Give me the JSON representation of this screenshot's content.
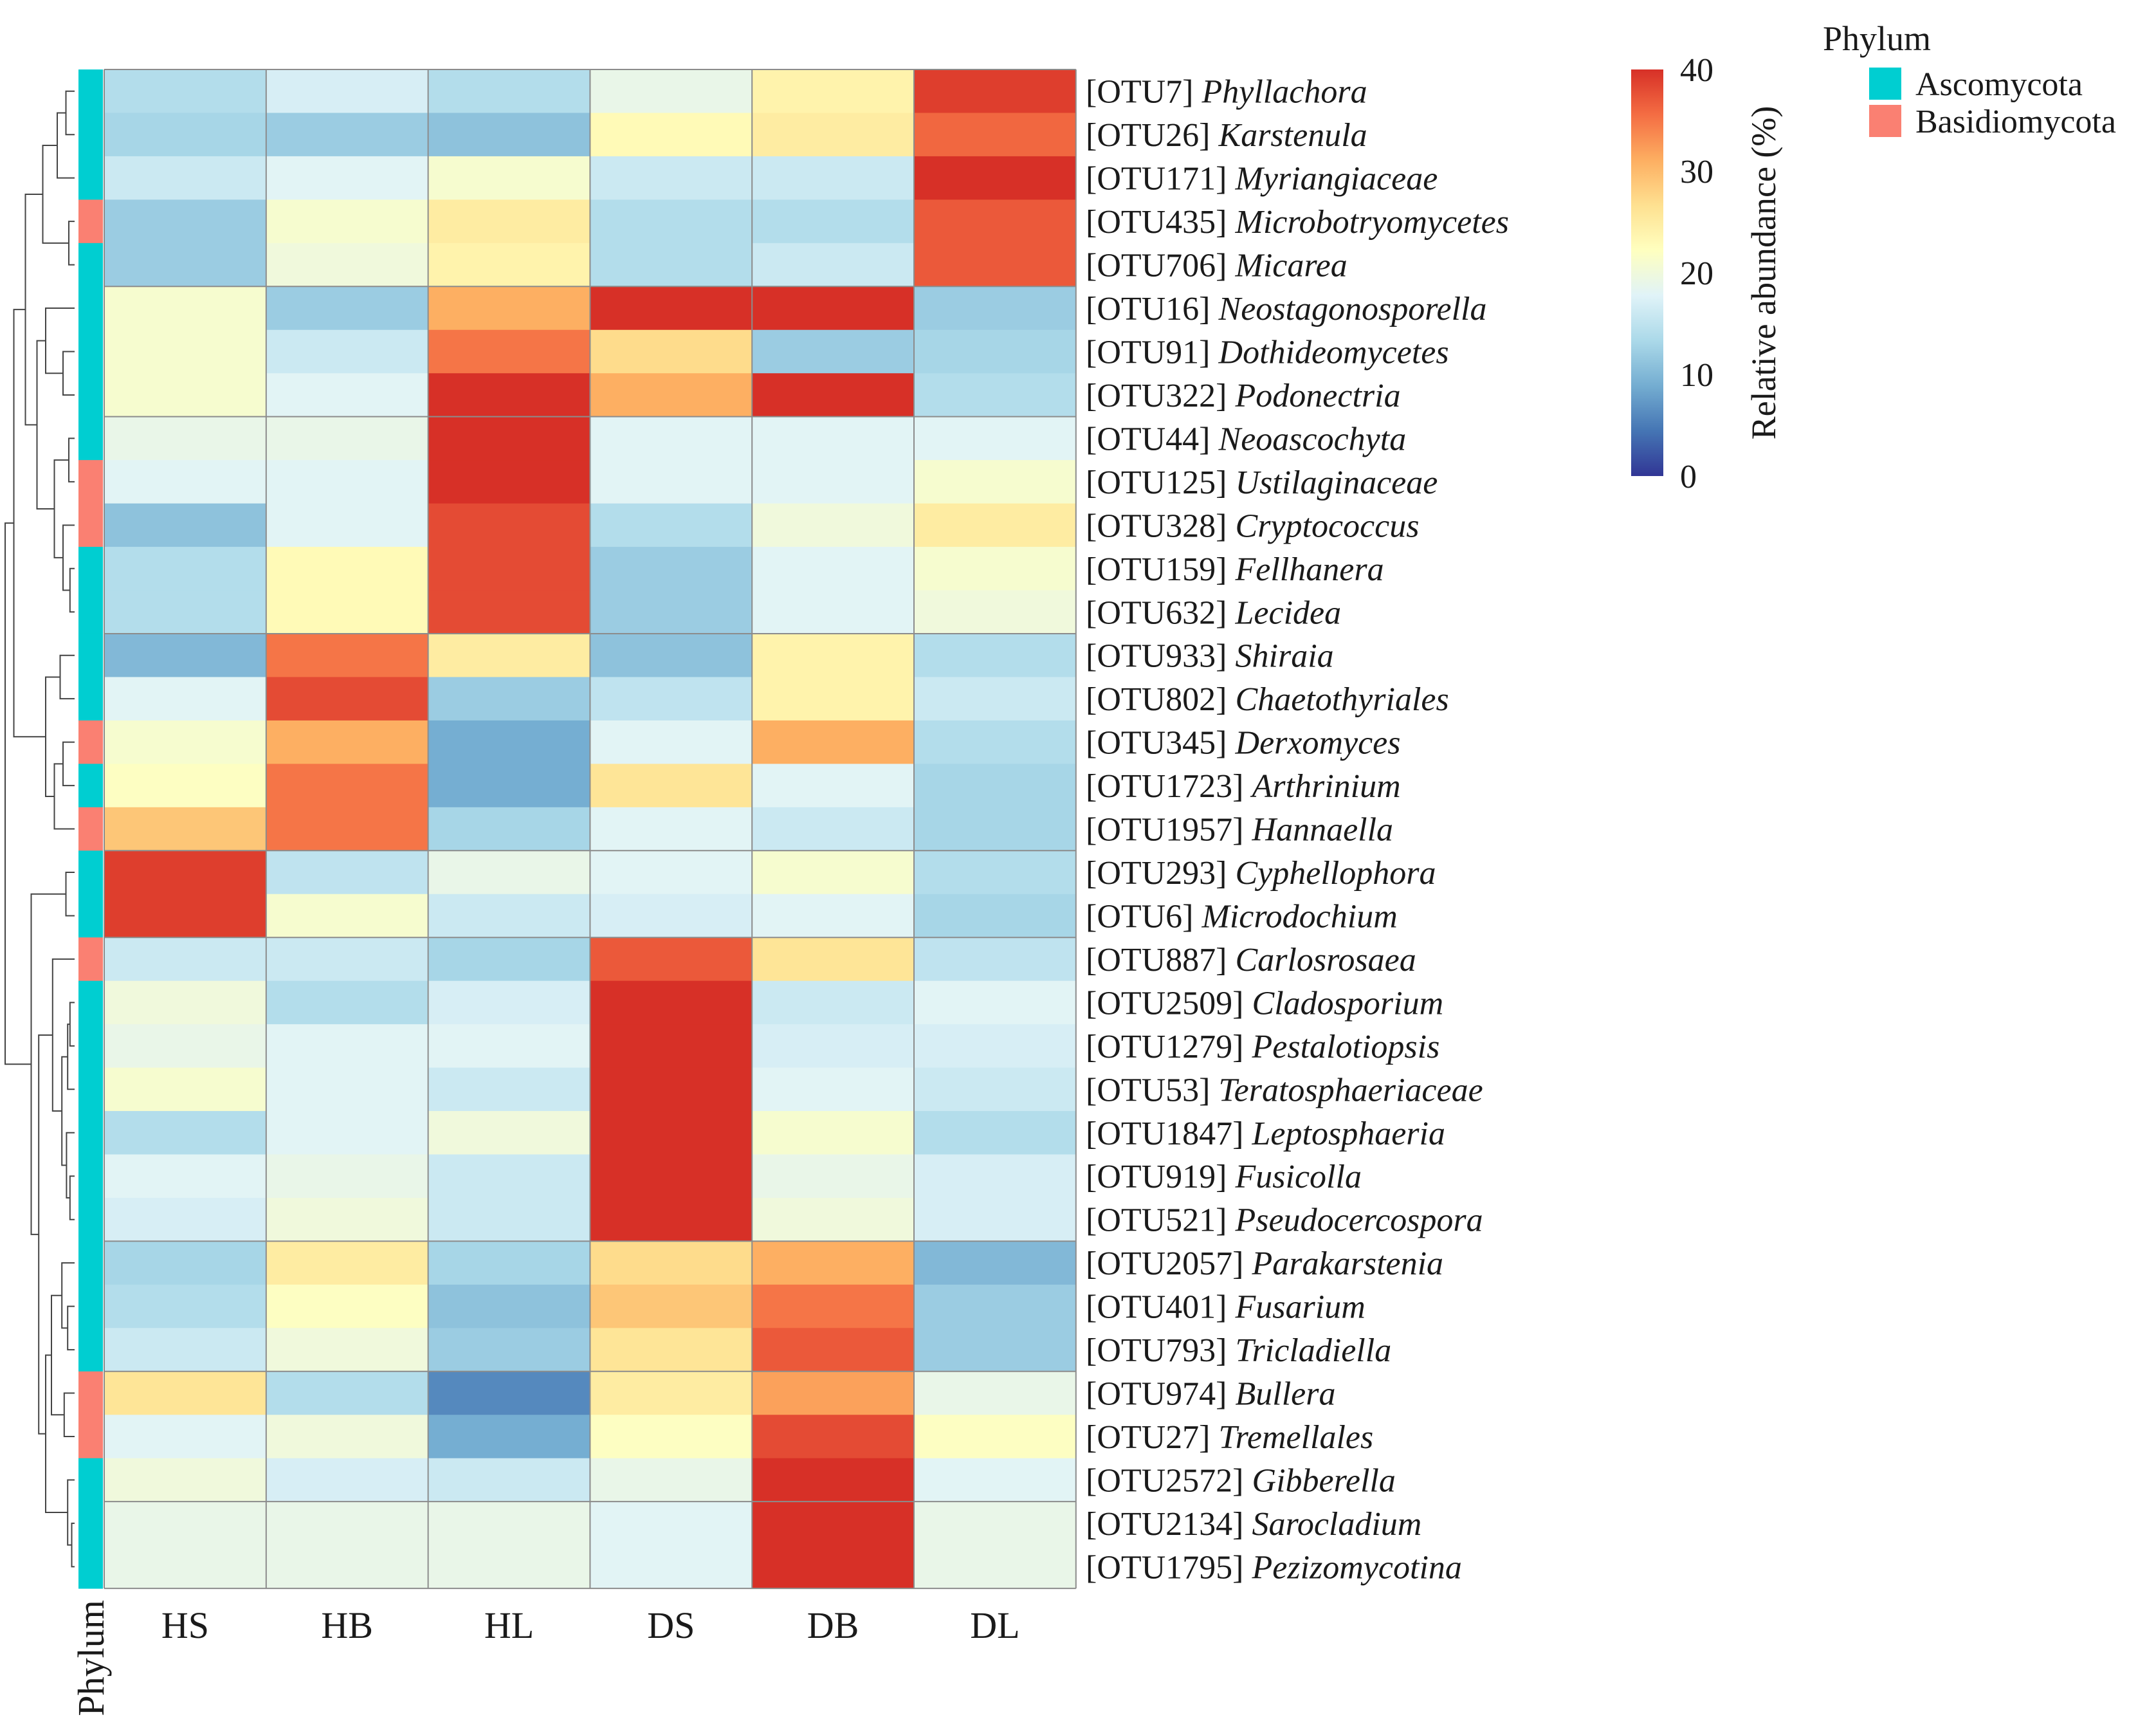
{
  "chart_data": {
    "type": "heatmap",
    "title": "",
    "columns": [
      "HS",
      "HB",
      "HL",
      "DS",
      "DB",
      "DL"
    ],
    "rows": [
      {
        "otu": "[OTU7]",
        "taxon": "Phyllachora",
        "phylum": "Ascomycota",
        "values": [
          14,
          17,
          14,
          19,
          24,
          39
        ]
      },
      {
        "otu": "[OTU26]",
        "taxon": "Karstenula",
        "phylum": "Ascomycota",
        "values": [
          13,
          12,
          11,
          23,
          25,
          36
        ]
      },
      {
        "otu": "[OTU171]",
        "taxon": "Myriangiaceae",
        "phylum": "Ascomycota",
        "values": [
          16,
          18,
          21,
          16,
          16,
          40
        ]
      },
      {
        "otu": "[OTU435]",
        "taxon": "Microbotryomycetes",
        "phylum": "Basidiomycota",
        "values": [
          12,
          21,
          25,
          14,
          14,
          37
        ]
      },
      {
        "otu": "[OTU706]",
        "taxon": "Micarea",
        "phylum": "Ascomycota",
        "values": [
          12,
          20,
          24,
          14,
          16,
          37
        ]
      },
      {
        "otu": "[OTU16]",
        "taxon": "Neostagonosporella",
        "phylum": "Ascomycota",
        "values": [
          21,
          12,
          31,
          40,
          40,
          12
        ]
      },
      {
        "otu": "[OTU91]",
        "taxon": "Dothideomycetes",
        "phylum": "Ascomycota",
        "values": [
          21,
          16,
          35,
          27,
          12,
          13
        ]
      },
      {
        "otu": "[OTU322]",
        "taxon": "Podonectria",
        "phylum": "Ascomycota",
        "values": [
          21,
          18,
          40,
          31,
          40,
          14
        ]
      },
      {
        "otu": "[OTU44]",
        "taxon": "Neoascochyta",
        "phylum": "Ascomycota",
        "values": [
          19,
          19,
          40,
          18,
          18,
          18
        ]
      },
      {
        "otu": "[OTU125]",
        "taxon": "Ustilaginaceae",
        "phylum": "Basidiomycota",
        "values": [
          18,
          18,
          40,
          18,
          18,
          21
        ]
      },
      {
        "otu": "[OTU328]",
        "taxon": "Cryptococcus",
        "phylum": "Basidiomycota",
        "values": [
          11,
          18,
          38,
          14,
          20,
          25
        ]
      },
      {
        "otu": "[OTU159]",
        "taxon": "Fellhanera",
        "phylum": "Ascomycota",
        "values": [
          14,
          23,
          38,
          12,
          18,
          21
        ]
      },
      {
        "otu": "[OTU632]",
        "taxon": "Lecidea",
        "phylum": "Ascomycota",
        "values": [
          14,
          23,
          38,
          12,
          18,
          20
        ]
      },
      {
        "otu": "[OTU933]",
        "taxon": "Shiraia",
        "phylum": "Ascomycota",
        "values": [
          10,
          35,
          25,
          11,
          24,
          14
        ]
      },
      {
        "otu": "[OTU802]",
        "taxon": "Chaetothyriales",
        "phylum": "Ascomycota",
        "values": [
          18,
          38,
          12,
          15,
          24,
          16
        ]
      },
      {
        "otu": "[OTU345]",
        "taxon": "Derxomyces",
        "phylum": "Basidiomycota",
        "values": [
          21,
          31,
          9,
          18,
          31,
          14
        ]
      },
      {
        "otu": "[OTU1723]",
        "taxon": "Arthrinium",
        "phylum": "Ascomycota",
        "values": [
          22,
          35,
          9,
          26,
          18,
          13
        ]
      },
      {
        "otu": "[OTU1957]",
        "taxon": "Hannaella",
        "phylum": "Basidiomycota",
        "values": [
          29,
          35,
          13,
          18,
          16,
          13
        ]
      },
      {
        "otu": "[OTU293]",
        "taxon": "Cyphellophora",
        "phylum": "Ascomycota",
        "values": [
          39,
          15,
          19,
          18,
          21,
          14
        ]
      },
      {
        "otu": "[OTU6]",
        "taxon": "Microdochium",
        "phylum": "Ascomycota",
        "values": [
          39,
          21,
          16,
          17,
          18,
          13
        ]
      },
      {
        "otu": "[OTU887]",
        "taxon": "Carlosrosaea",
        "phylum": "Basidiomycota",
        "values": [
          16,
          16,
          13,
          37,
          26,
          15
        ]
      },
      {
        "otu": "[OTU2509]",
        "taxon": "Cladosporium",
        "phylum": "Ascomycota",
        "values": [
          20,
          14,
          17,
          40,
          16,
          18
        ]
      },
      {
        "otu": "[OTU1279]",
        "taxon": "Pestalotiopsis",
        "phylum": "Ascomycota",
        "values": [
          19,
          18,
          18,
          40,
          17,
          17
        ]
      },
      {
        "otu": "[OTU53]",
        "taxon": "Teratosphaeriaceae",
        "phylum": "Ascomycota",
        "values": [
          21,
          18,
          16,
          40,
          18,
          16
        ]
      },
      {
        "otu": "[OTU1847]",
        "taxon": "Leptosphaeria",
        "phylum": "Ascomycota",
        "values": [
          14,
          18,
          20,
          40,
          21,
          14
        ]
      },
      {
        "otu": "[OTU919]",
        "taxon": "Fusicolla",
        "phylum": "Ascomycota",
        "values": [
          18,
          19,
          16,
          40,
          19,
          17
        ]
      },
      {
        "otu": "[OTU521]",
        "taxon": "Pseudocercospora",
        "phylum": "Ascomycota",
        "values": [
          17,
          20,
          16,
          40,
          20,
          17
        ]
      },
      {
        "otu": "[OTU2057]",
        "taxon": "Parakarstenia",
        "phylum": "Ascomycota",
        "values": [
          13,
          25,
          13,
          27,
          31,
          10
        ]
      },
      {
        "otu": "[OTU401]",
        "taxon": "Fusarium",
        "phylum": "Ascomycota",
        "values": [
          14,
          22,
          11,
          29,
          35,
          12
        ]
      },
      {
        "otu": "[OTU793]",
        "taxon": "Tricladiella",
        "phylum": "Ascomycota",
        "values": [
          16,
          20,
          12,
          26,
          37,
          12
        ]
      },
      {
        "otu": "[OTU974]",
        "taxon": "Bullera",
        "phylum": "Basidiomycota",
        "values": [
          26,
          14,
          6,
          25,
          32,
          19
        ]
      },
      {
        "otu": "[OTU27]",
        "taxon": "Tremellales",
        "phylum": "Basidiomycota",
        "values": [
          18,
          20,
          9,
          22,
          38,
          22
        ]
      },
      {
        "otu": "[OTU2572]",
        "taxon": "Gibberella",
        "phylum": "Ascomycota",
        "values": [
          20,
          17,
          16,
          19,
          40,
          18
        ]
      },
      {
        "otu": "[OTU2134]",
        "taxon": "Sarocladium",
        "phylum": "Ascomycota",
        "values": [
          19,
          19,
          19,
          18,
          40,
          19
        ]
      },
      {
        "otu": "[OTU1795]",
        "taxon": "Pezizomycotina",
        "phylum": "Ascomycota",
        "values": [
          19,
          19,
          19,
          18,
          40,
          19
        ]
      }
    ],
    "group_breaks_after_row": [
      4,
      7,
      12,
      17,
      19,
      26,
      29,
      32
    ],
    "annotation_label": "Phylum",
    "colorbar": {
      "label": "Relative abundance  (%)",
      "min": 0,
      "max": 40,
      "ticks": [
        "40",
        "30",
        "20",
        "10",
        "0"
      ],
      "colors": [
        "#313695",
        "#4575b4",
        "#74add1",
        "#abd9e9",
        "#e0f3f8",
        "#ffffbf",
        "#fee090",
        "#fdae61",
        "#f46d43",
        "#d73027"
      ]
    },
    "legend": {
      "title": "Phylum",
      "items": [
        {
          "label": "Ascomycota",
          "color": "#00CED1"
        },
        {
          "label": "Basidiomycota",
          "color": "#FA8072"
        }
      ]
    }
  }
}
